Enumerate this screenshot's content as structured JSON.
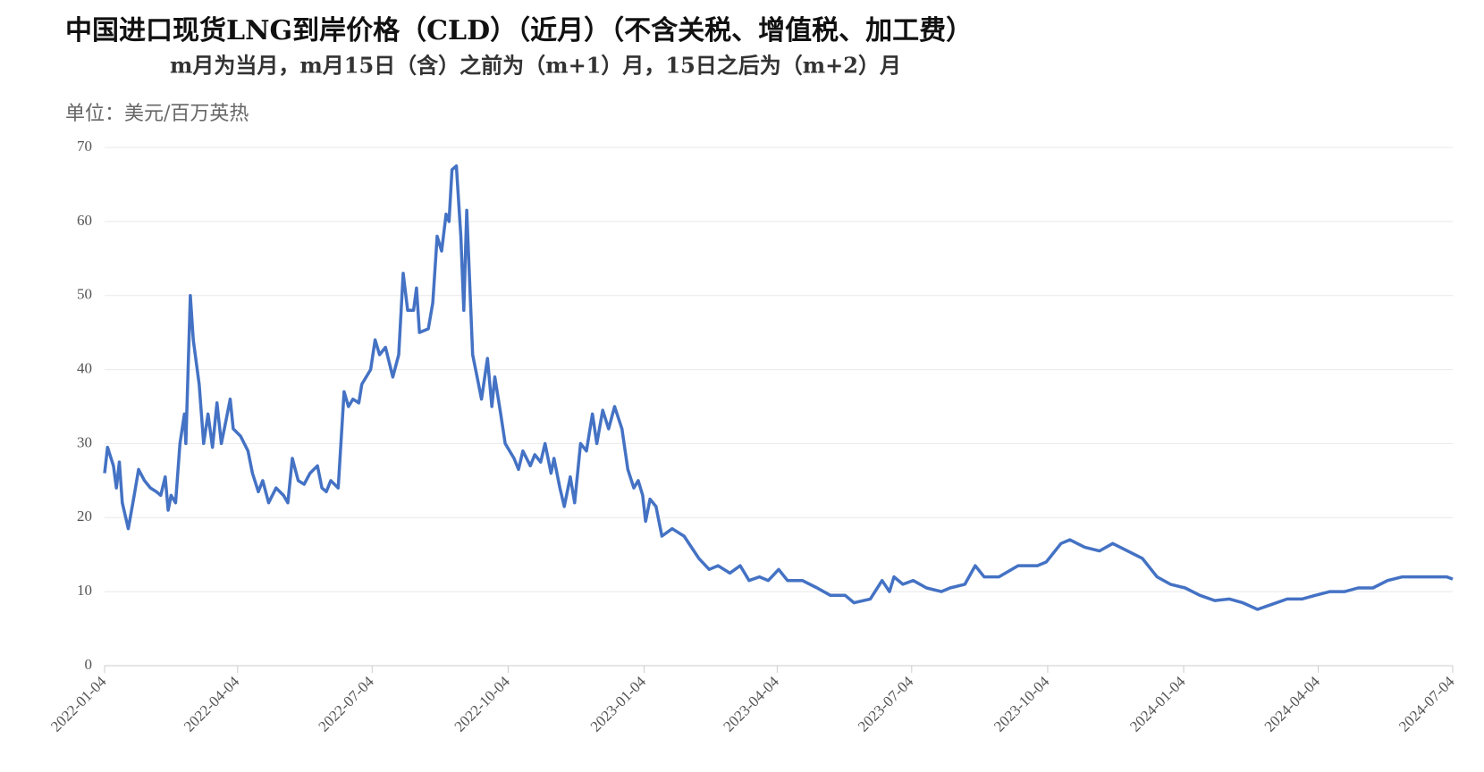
{
  "chart_data": {
    "type": "line",
    "title": "中国进口现货LNG到岸价格（CLD）（近月）（不含关税、增值税、加工费）",
    "subtitle": "m月为当月，m月15日（含）之前为（m+1）月，15日之后为（m+2）月",
    "y_label": "单位：美元/百万英热",
    "x": [
      "2022-01-04",
      "2022-01-06",
      "2022-01-10",
      "2022-01-12",
      "2022-01-14",
      "2022-01-16",
      "2022-01-20",
      "2022-01-24",
      "2022-01-27",
      "2022-01-31",
      "2022-02-04",
      "2022-02-08",
      "2022-02-11",
      "2022-02-14",
      "2022-02-16",
      "2022-02-18",
      "2022-02-21",
      "2022-02-24",
      "2022-02-27",
      "2022-02-28",
      "2022-03-03",
      "2022-03-05",
      "2022-03-09",
      "2022-03-12",
      "2022-03-15",
      "2022-03-18",
      "2022-03-21",
      "2022-03-24",
      "2022-03-27",
      "2022-03-30",
      "2022-04-01",
      "2022-04-06",
      "2022-04-11",
      "2022-04-14",
      "2022-04-18",
      "2022-04-21",
      "2022-04-25",
      "2022-04-30",
      "2022-05-05",
      "2022-05-08",
      "2022-05-11",
      "2022-05-15",
      "2022-05-19",
      "2022-05-23",
      "2022-05-28",
      "2022-05-31",
      "2022-06-03",
      "2022-06-06",
      "2022-06-11",
      "2022-06-15",
      "2022-06-18",
      "2022-06-21",
      "2022-06-25",
      "2022-06-27",
      "2022-07-03",
      "2022-07-06",
      "2022-07-09",
      "2022-07-13",
      "2022-07-18",
      "2022-07-22",
      "2022-07-25",
      "2022-07-28",
      "2022-08-01",
      "2022-08-03",
      "2022-08-05",
      "2022-08-11",
      "2022-08-14",
      "2022-08-17",
      "2022-08-20",
      "2022-08-23",
      "2022-08-25",
      "2022-08-27",
      "2022-08-30",
      "2022-09-02",
      "2022-09-04",
      "2022-09-06",
      "2022-09-10",
      "2022-09-13",
      "2022-09-16",
      "2022-09-20",
      "2022-09-23",
      "2022-09-25",
      "2022-09-29",
      "2022-10-02",
      "2022-10-08",
      "2022-10-11",
      "2022-10-14",
      "2022-10-19",
      "2022-10-22",
      "2022-10-26",
      "2022-10-29",
      "2022-11-02",
      "2022-11-04",
      "2022-11-08",
      "2022-11-11",
      "2022-11-15",
      "2022-11-18",
      "2022-11-22",
      "2022-11-26",
      "2022-11-30",
      "2022-12-03",
      "2022-12-07",
      "2022-12-11",
      "2022-12-15",
      "2022-12-20",
      "2022-12-24",
      "2022-12-28",
      "2022-12-31",
      "2023-01-03",
      "2023-01-05",
      "2023-01-08",
      "2023-01-12",
      "2023-01-16",
      "2023-01-23",
      "2023-01-31",
      "2023-02-05",
      "2023-02-10",
      "2023-02-17",
      "2023-02-23",
      "2023-03-03",
      "2023-03-10",
      "2023-03-16",
      "2023-03-23",
      "2023-03-29",
      "2023-04-05",
      "2023-04-11",
      "2023-04-21",
      "2023-05-01",
      "2023-05-10",
      "2023-05-20",
      "2023-05-26",
      "2023-06-06",
      "2023-06-14",
      "2023-06-19",
      "2023-06-22",
      "2023-06-28",
      "2023-07-05",
      "2023-07-14",
      "2023-07-24",
      "2023-07-30",
      "2023-08-09",
      "2023-08-16",
      "2023-08-22",
      "2023-09-01",
      "2023-09-14",
      "2023-09-27",
      "2023-10-03",
      "2023-10-13",
      "2023-10-19",
      "2023-10-29",
      "2023-11-08",
      "2023-11-17",
      "2023-11-27",
      "2023-12-07",
      "2023-12-17",
      "2023-12-26",
      "2024-01-05",
      "2024-01-15",
      "2024-01-25",
      "2024-02-04",
      "2024-02-13",
      "2024-02-23",
      "2024-03-04",
      "2024-03-14",
      "2024-03-24",
      "2024-04-02",
      "2024-04-12",
      "2024-04-22",
      "2024-05-01",
      "2024-05-11",
      "2024-05-21",
      "2024-05-31",
      "2024-06-10",
      "2024-06-20",
      "2024-06-30",
      "2024-07-04"
    ],
    "series": [
      {
        "color": "#4472c4",
        "values": [
          26,
          29.5,
          27,
          24,
          27.5,
          22,
          18.5,
          23,
          26.5,
          25,
          24,
          23.5,
          23,
          25.5,
          21,
          23,
          22,
          30,
          34,
          30,
          50,
          44,
          38,
          30,
          34,
          29.5,
          35.5,
          30,
          33,
          36,
          32,
          31,
          29,
          26,
          23.5,
          25,
          22,
          24,
          23,
          22,
          28,
          25,
          24.5,
          26,
          27,
          24,
          23.5,
          25,
          24,
          37,
          35,
          36,
          35.5,
          38,
          40,
          44,
          42,
          43,
          39,
          42,
          53,
          48,
          48,
          51,
          45,
          45.5,
          49,
          58,
          56,
          61,
          60,
          67,
          67.5,
          58,
          48,
          61.5,
          42,
          39,
          36,
          41.5,
          35,
          39,
          34,
          30,
          28,
          26.5,
          29,
          27,
          28.5,
          27.5,
          30,
          26,
          28,
          24,
          21.5,
          25.5,
          22,
          30,
          29,
          34,
          30,
          34.5,
          32,
          35,
          32,
          26.5,
          24,
          25,
          23,
          19.5,
          22.5,
          21.5,
          17.5,
          18.5,
          17.5,
          16,
          14.5,
          13,
          13.5,
          12.5,
          13.5,
          11.5,
          12,
          11.5,
          13,
          11.5,
          11.5,
          10.5,
          9.5,
          9.5,
          8.5,
          9,
          11.5,
          10,
          12,
          11,
          11.5,
          10.5,
          10,
          10.5,
          11,
          13.5,
          12,
          12,
          13.5,
          13.5,
          14,
          16.5,
          17,
          16,
          15.5,
          16.5,
          15.5,
          14.5,
          12,
          11,
          10.5,
          9.5,
          8.8,
          9,
          8.5,
          7.6,
          8.3,
          9,
          9,
          9.5,
          10,
          10,
          10.5,
          10.5,
          11.5,
          12,
          12,
          12,
          12,
          11.7
        ]
      }
    ],
    "xlim": [
      "2022-01-04",
      "2024-07-04"
    ],
    "xticks": [
      "2022-01-04",
      "2022-04-04",
      "2022-07-04",
      "2022-10-04",
      "2023-01-04",
      "2023-04-04",
      "2023-07-04",
      "2023-10-04",
      "2024-01-04",
      "2024-04-04",
      "2024-07-04"
    ],
    "ylim": [
      0,
      70
    ],
    "yticks": [
      0,
      10,
      20,
      30,
      40,
      50,
      60,
      70
    ],
    "grid": true
  }
}
